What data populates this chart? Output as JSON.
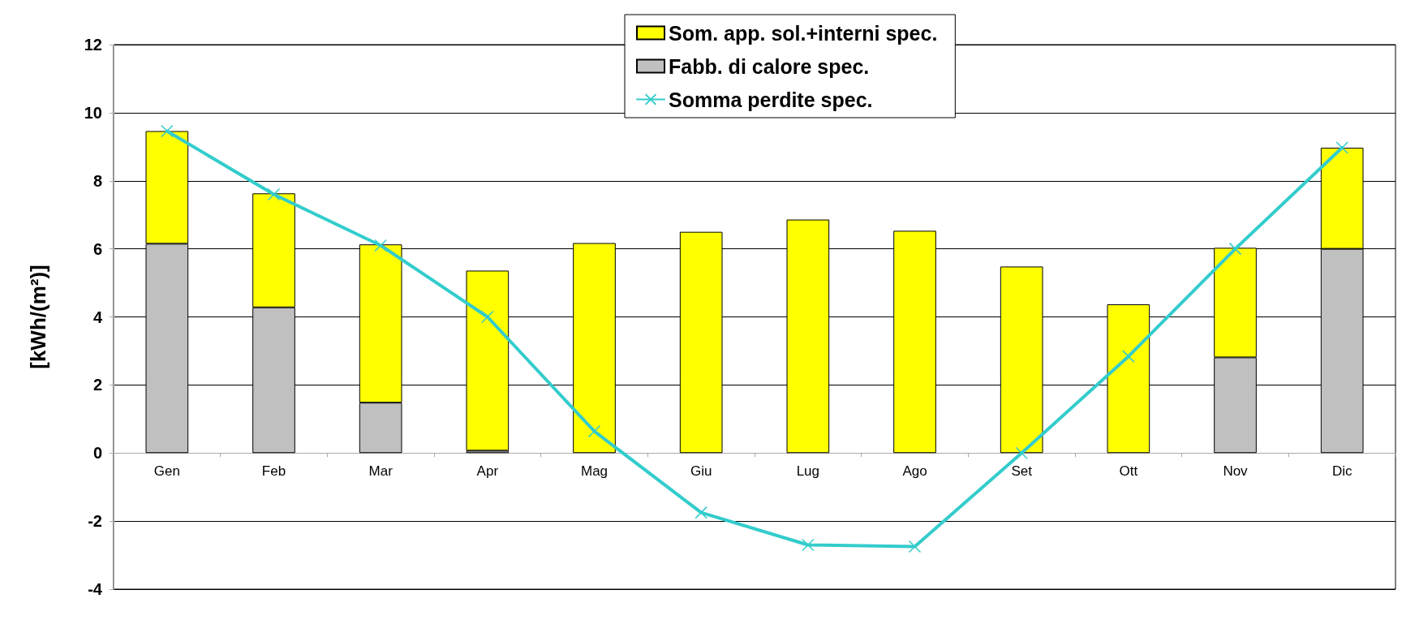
{
  "chart_data": {
    "type": "bar",
    "stacked": true,
    "ylabel": "[kWh/(m²)]",
    "categories": [
      "Gen",
      "Feb",
      "Mar",
      "Apr",
      "Mag",
      "Giu",
      "Lug",
      "Ago",
      "Set",
      "Ott",
      "Nov",
      "Dic"
    ],
    "series": [
      {
        "name": "Fabb. di calore spec.",
        "color": "#c0c0c0",
        "values": [
          6.15,
          4.28,
          1.48,
          0.07,
          null,
          null,
          null,
          null,
          null,
          null,
          2.81,
          6.0
        ]
      },
      {
        "name": "Som. app. sol.+interni spec.",
        "color": "#ffff00",
        "values": [
          3.31,
          3.35,
          4.65,
          5.29,
          6.17,
          6.5,
          6.86,
          6.53,
          5.48,
          4.37,
          3.22,
          2.97
        ]
      },
      {
        "name": "Somma perdite spec.",
        "type": "line",
        "color": "#33cccc",
        "marker": "cross",
        "values": [
          9.46,
          7.6,
          6.1,
          4.0,
          0.64,
          -1.75,
          -2.7,
          -2.75,
          0.0,
          2.84,
          6.0,
          8.97
        ]
      }
    ],
    "ylim": [
      -4,
      12
    ],
    "yticks": [
      -4,
      -2,
      0,
      2,
      4,
      6,
      8,
      10,
      12
    ],
    "grid": "y",
    "legend": "top"
  }
}
